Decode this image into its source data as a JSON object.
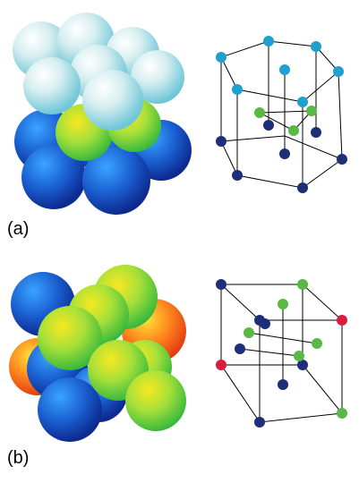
{
  "panels": [
    {
      "label": "(a)"
    },
    {
      "label": "(b)"
    }
  ],
  "colors": {
    "light_cyan": "#6fc6d8",
    "blue": "#1432a0",
    "green": "#44b83a",
    "atom_cyan": "#1fa0d0",
    "atom_navy": "#1e2e78",
    "atom_green": "#5ab845",
    "atom_red": "#d81e3c",
    "edge": "#000000"
  }
}
